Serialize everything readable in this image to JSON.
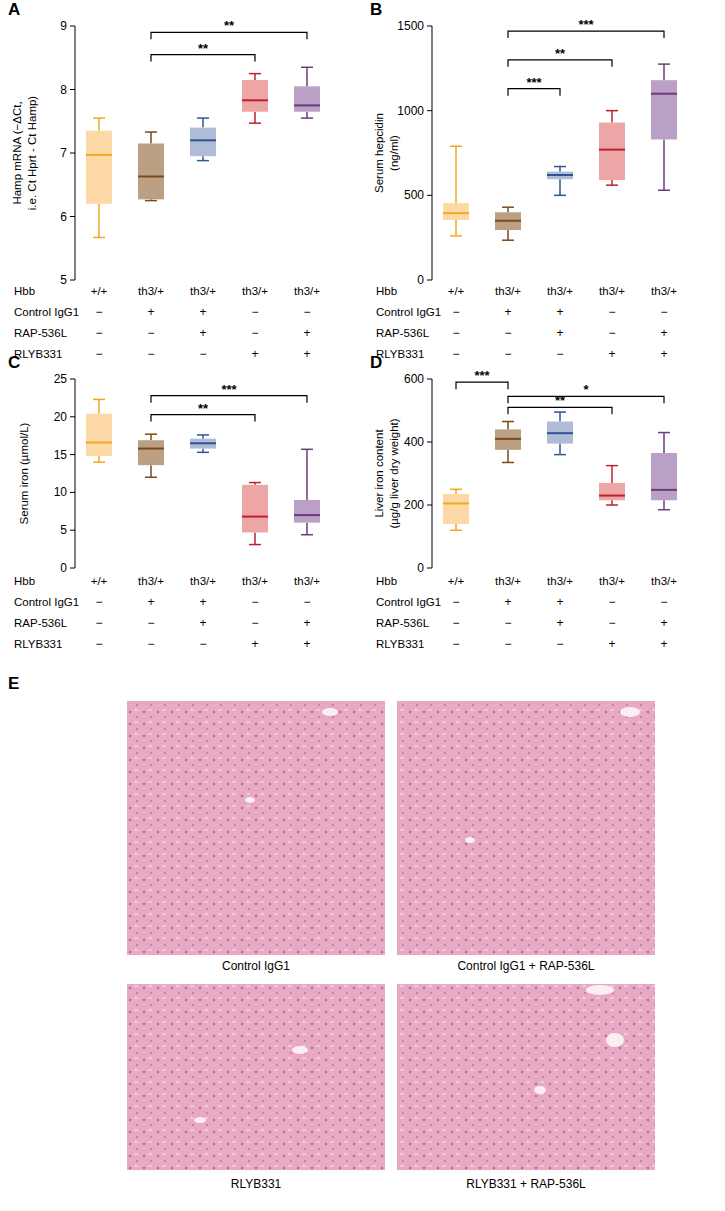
{
  "chart_data": [
    {
      "type": "box",
      "panel": "A",
      "y_label": [
        "Hamp mRNA (−ΔCt,",
        "i.e. Ct Hprt - Ct Hamp)"
      ],
      "ylim": [
        5,
        9
      ],
      "yticks": [
        5,
        6,
        7,
        8,
        9
      ],
      "x_label": "Hbb",
      "categories": [
        "+/+",
        "th3/+",
        "th3/+",
        "th3/+",
        "th3/+"
      ],
      "treatments": [
        {
          "name": "Control IgG1",
          "marks": [
            "−",
            "+",
            "+",
            "−",
            "−"
          ]
        },
        {
          "name": "RAP-536L",
          "marks": [
            "−",
            "−",
            "+",
            "−",
            "+"
          ]
        },
        {
          "name": "RLYB331",
          "marks": [
            "−",
            "−",
            "−",
            "+",
            "+"
          ]
        }
      ],
      "colors": [
        "#f5a623",
        "#7a4a1e",
        "#2f5597",
        "#c0202b",
        "#6a3b7b"
      ],
      "whisker_low": [
        5.67,
        6.25,
        6.88,
        7.47,
        7.55
      ],
      "q1": [
        6.2,
        6.27,
        6.95,
        7.65,
        7.65
      ],
      "median": [
        6.97,
        6.63,
        7.2,
        7.83,
        7.75
      ],
      "q3": [
        7.35,
        7.15,
        7.4,
        8.15,
        8.05
      ],
      "whisker_high": [
        7.55,
        7.33,
        7.55,
        8.25,
        8.35
      ],
      "significance": [
        {
          "from": 1,
          "to": 3,
          "y": 8.55,
          "label": "**"
        },
        {
          "from": 1,
          "to": 4,
          "y": 8.9,
          "label": "**"
        }
      ]
    },
    {
      "type": "box",
      "panel": "B",
      "y_label": [
        "Serum hepcidin",
        "(ng/ml)"
      ],
      "ylim": [
        0,
        1500
      ],
      "yticks": [
        0,
        500,
        1000,
        1500
      ],
      "x_label": "Hbb",
      "categories": [
        "+/+",
        "th3/+",
        "th3/+",
        "th3/+",
        "th3/+"
      ],
      "treatments": [
        {
          "name": "Control IgG1",
          "marks": [
            "−",
            "+",
            "+",
            "−",
            "−"
          ]
        },
        {
          "name": "RAP-536L",
          "marks": [
            "−",
            "−",
            "+",
            "−",
            "+"
          ]
        },
        {
          "name": "RLYB331",
          "marks": [
            "−",
            "−",
            "−",
            "+",
            "+"
          ]
        }
      ],
      "colors": [
        "#f5a623",
        "#7a4a1e",
        "#2f5597",
        "#c0202b",
        "#6a3b7b"
      ],
      "whisker_low": [
        260,
        235,
        500,
        560,
        530
      ],
      "q1": [
        355,
        295,
        595,
        590,
        830
      ],
      "median": [
        395,
        350,
        620,
        770,
        1100
      ],
      "q3": [
        455,
        400,
        640,
        930,
        1180
      ],
      "whisker_high": [
        790,
        430,
        670,
        1000,
        1275
      ],
      "significance": [
        {
          "from": 1,
          "to": 2,
          "y": 1130,
          "label": "***"
        },
        {
          "from": 1,
          "to": 3,
          "y": 1300,
          "label": "**"
        },
        {
          "from": 1,
          "to": 4,
          "y": 1470,
          "label": "***"
        }
      ]
    },
    {
      "type": "box",
      "panel": "C",
      "y_label": [
        "Serum iron (µmol/L)"
      ],
      "ylim": [
        0,
        25
      ],
      "yticks": [
        0,
        5,
        10,
        15,
        20,
        25
      ],
      "x_label": "Hbb",
      "categories": [
        "+/+",
        "th3/+",
        "th3/+",
        "th3/+",
        "th3/+"
      ],
      "treatments": [
        {
          "name": "Control IgG1",
          "marks": [
            "−",
            "+",
            "+",
            "−",
            "−"
          ]
        },
        {
          "name": "RAP-536L",
          "marks": [
            "−",
            "−",
            "+",
            "−",
            "+"
          ]
        },
        {
          "name": "RLYB331",
          "marks": [
            "−",
            "−",
            "−",
            "+",
            "+"
          ]
        }
      ],
      "colors": [
        "#f5a623",
        "#7a4a1e",
        "#2f5597",
        "#c0202b",
        "#6a3b7b"
      ],
      "whisker_low": [
        14,
        12,
        15.3,
        3.1,
        4.4
      ],
      "q1": [
        14.8,
        13.6,
        15.8,
        4.7,
        6
      ],
      "median": [
        16.6,
        15.8,
        16.5,
        6.8,
        7
      ],
      "q3": [
        20.4,
        16.9,
        17.1,
        11,
        9
      ],
      "whisker_high": [
        22.3,
        17.7,
        17.6,
        11.3,
        15.7
      ],
      "significance": [
        {
          "from": 1,
          "to": 3,
          "y": 20.3,
          "label": "**"
        },
        {
          "from": 1,
          "to": 4,
          "y": 22.8,
          "label": "***"
        }
      ]
    },
    {
      "type": "box",
      "panel": "D",
      "y_label": [
        "Liver iron content",
        "(µg/g liver dry weight)"
      ],
      "ylim": [
        0,
        600
      ],
      "yticks": [
        0,
        200,
        400,
        600
      ],
      "x_label": "Hbb",
      "categories": [
        "+/+",
        "th3/+",
        "th3/+",
        "th3/+",
        "th3/+"
      ],
      "treatments": [
        {
          "name": "Control IgG1",
          "marks": [
            "−",
            "+",
            "+",
            "−",
            "−"
          ]
        },
        {
          "name": "RAP-536L",
          "marks": [
            "−",
            "−",
            "+",
            "−",
            "+"
          ]
        },
        {
          "name": "RLYB331",
          "marks": [
            "−",
            "−",
            "−",
            "+",
            "+"
          ]
        }
      ],
      "colors": [
        "#f5a623",
        "#7a4a1e",
        "#2f5597",
        "#c0202b",
        "#6a3b7b"
      ],
      "whisker_low": [
        120,
        335,
        360,
        200,
        185
      ],
      "q1": [
        140,
        375,
        395,
        215,
        215
      ],
      "median": [
        205,
        410,
        428,
        230,
        248
      ],
      "q3": [
        235,
        440,
        465,
        270,
        365
      ],
      "whisker_high": [
        250,
        465,
        495,
        325,
        430
      ],
      "significance": [
        {
          "from": 0,
          "to": 1,
          "y": 590,
          "label": "***"
        },
        {
          "from": 1,
          "to": 4,
          "y": 545,
          "label": "*"
        },
        {
          "from": 1,
          "to": 3,
          "y": 510,
          "label": "**"
        }
      ]
    }
  ],
  "figure": {
    "panel": "E",
    "images": [
      {
        "caption": "Control IgG1"
      },
      {
        "caption": "Control IgG1 + RAP-536L"
      },
      {
        "caption": "RLYB331"
      },
      {
        "caption": "RLYB331 + RAP-536L"
      }
    ]
  }
}
